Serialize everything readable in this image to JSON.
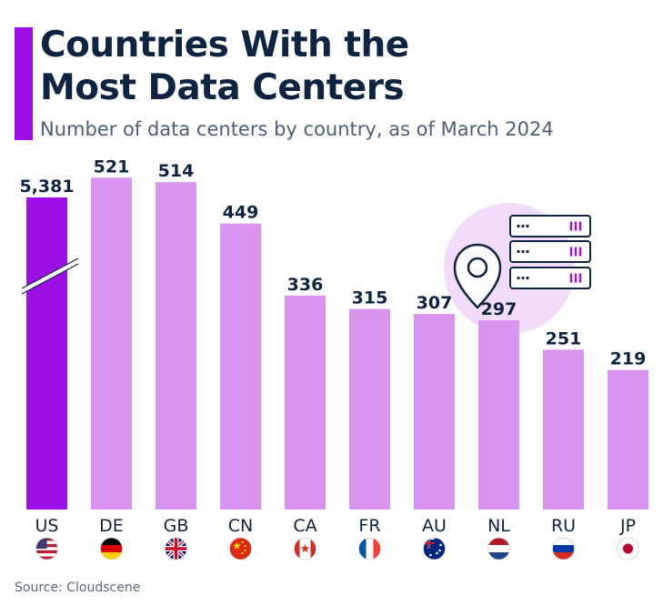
{
  "header": {
    "title_line1": "Countries With the",
    "title_line2": "Most Data Centers",
    "subtitle": "Number of data centers by country, as of March 2024"
  },
  "footer": {
    "source": "Source: Cloudscene"
  },
  "colors": {
    "accent": "#9b0fe6",
    "bar_highlight": "#9b0fe6",
    "bar_default": "#d894ef",
    "text_dark": "#0f2440"
  },
  "chart_data": {
    "type": "bar",
    "title": "Countries With the Most Data Centers",
    "subtitle": "Number of data centers by country, as of March 2024",
    "categories": [
      "US",
      "DE",
      "GB",
      "CN",
      "CA",
      "FR",
      "AU",
      "NL",
      "RU",
      "JP"
    ],
    "values": [
      5381,
      521,
      514,
      449,
      336,
      315,
      307,
      297,
      251,
      219
    ],
    "value_labels": [
      "5,381",
      "521",
      "514",
      "449",
      "336",
      "315",
      "307",
      "297",
      "251",
      "219"
    ],
    "highlight": "US",
    "axis_break": "US",
    "grid": false,
    "flags": [
      "us-flag-icon",
      "de-flag-icon",
      "gb-flag-icon",
      "cn-flag-icon",
      "ca-flag-icon",
      "fr-flag-icon",
      "au-flag-icon",
      "nl-flag-icon",
      "ru-flag-icon",
      "jp-flag-icon"
    ]
  },
  "illustration": {
    "icon": "data-center-location-icon"
  }
}
